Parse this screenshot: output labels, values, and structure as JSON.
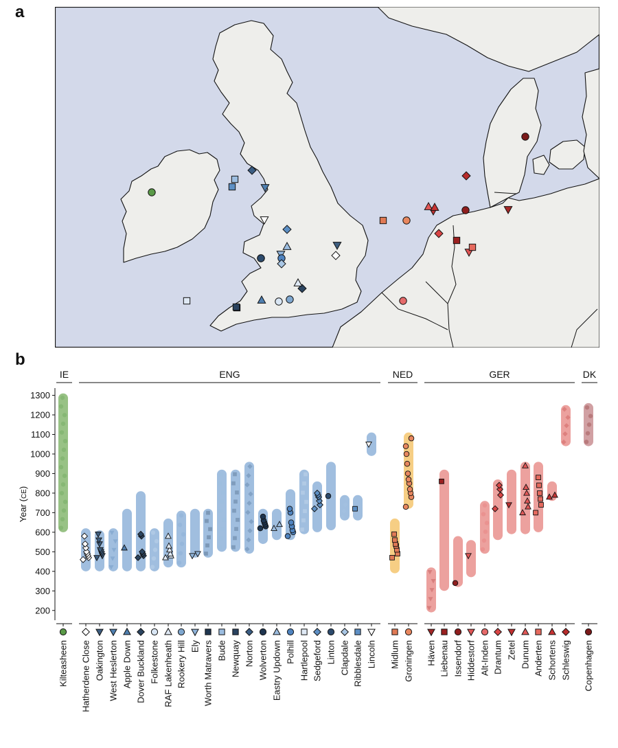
{
  "panel_a_label": "a",
  "panel_b_label": "b",
  "colors": {
    "sea": "#d3d9ea",
    "land": "#eeeeeb",
    "coast": "#111111",
    "IE": "#86b770",
    "ENG": "#8fb3d9",
    "NED": "#f5c56f",
    "GER": "#e9908d",
    "DK": "#c98f93"
  },
  "map_markers": [
    {
      "site": "Kilteasheen",
      "shape": "circle",
      "color": "#5a9a48"
    },
    {
      "site": "Hatherdene Close",
      "shape": "diamond",
      "color": "#ffffff"
    },
    {
      "site": "Oakington",
      "shape": "triangle-down",
      "color": "#3e5e80"
    },
    {
      "site": "West Heslerton",
      "shape": "triangle-down",
      "color": "#4f7fb0"
    },
    {
      "site": "Apple Down",
      "shape": "triangle-up",
      "color": "#4f7fb0"
    },
    {
      "site": "Dover Buckland",
      "shape": "diamond",
      "color": "#2c4560"
    },
    {
      "site": "Folkestone",
      "shape": "circle",
      "color": "#d9e6f4"
    },
    {
      "site": "RAF Lakenheath",
      "shape": "triangle-up",
      "color": "#dfe9f5"
    },
    {
      "site": "Rookery Hill",
      "shape": "circle",
      "color": "#7fa7cf"
    },
    {
      "site": "Ely",
      "shape": "triangle-down",
      "color": "#8fb3d9"
    },
    {
      "site": "Worth Matravers",
      "shape": "square",
      "color": "#1f3650"
    },
    {
      "site": "Bude",
      "shape": "square",
      "color": "#9cbde0"
    },
    {
      "site": "Newquay",
      "shape": "square",
      "color": "#2a4360"
    },
    {
      "site": "Norton",
      "shape": "diamond",
      "color": "#3a5d84"
    },
    {
      "site": "Wolverton",
      "shape": "circle",
      "color": "#1e3550"
    },
    {
      "site": "Eastry Updown",
      "shape": "triangle-up",
      "color": "#9cbde0"
    },
    {
      "site": "Polhill",
      "shape": "circle",
      "color": "#4f83bf"
    },
    {
      "site": "Hartlepool",
      "shape": "square",
      "color": "#dfe9f5"
    },
    {
      "site": "Sedgeford",
      "shape": "diamond",
      "color": "#5d8fc4"
    },
    {
      "site": "Linton",
      "shape": "circle",
      "color": "#2c4a6c"
    },
    {
      "site": "Clapdale",
      "shape": "diamond",
      "color": "#a9c6e4"
    },
    {
      "site": "Ribblesdale",
      "shape": "square",
      "color": "#5d8fc4"
    },
    {
      "site": "Lincoln",
      "shape": "triangle-down",
      "color": "#ffffff"
    },
    {
      "site": "Midlum",
      "shape": "square",
      "color": "#e07a55"
    },
    {
      "site": "Groningen",
      "shape": "circle",
      "color": "#e8875f"
    },
    {
      "site": "Häven",
      "shape": "triangle-down",
      "color": "#a52828"
    },
    {
      "site": "Liebenau",
      "shape": "square",
      "color": "#9a2020"
    },
    {
      "site": "Issendorf",
      "shape": "circle",
      "color": "#8f1e1e"
    },
    {
      "site": "Hiddestorf",
      "shape": "triangle-down",
      "color": "#e05555"
    },
    {
      "site": "Alt-Inden",
      "shape": "circle",
      "color": "#e56a6a"
    },
    {
      "site": "Drantum",
      "shape": "diamond",
      "color": "#d94545"
    },
    {
      "site": "Zetel",
      "shape": "triangle-down",
      "color": "#c03030"
    },
    {
      "site": "Dunum",
      "shape": "triangle-up",
      "color": "#e25858"
    },
    {
      "site": "Anderten",
      "shape": "square",
      "color": "#e66a5e"
    },
    {
      "site": "Schortens",
      "shape": "triangle-up",
      "color": "#c83434"
    },
    {
      "site": "Schleswig",
      "shape": "diamond",
      "color": "#b72c2c"
    },
    {
      "site": "Copenhagen",
      "shape": "circle",
      "color": "#7a1a1a"
    }
  ],
  "chart_data": {
    "type": "scatter",
    "title": "",
    "xlabel": "",
    "ylabel": "Year (CE)",
    "ylabel_main": "Year (",
    "ylabel_unit": "CE",
    "ylabel_close": ")",
    "ylim": [
      150,
      1330
    ],
    "yticks": [
      200,
      300,
      400,
      500,
      600,
      700,
      800,
      900,
      1000,
      1100,
      1200,
      1300
    ],
    "grid": false,
    "groups": [
      {
        "label": "IE",
        "color": "#86b770",
        "sites": [
          0
        ]
      },
      {
        "label": "ENG",
        "color": "#8fb3d9",
        "sites": [
          1,
          2,
          3,
          4,
          5,
          6,
          7,
          8,
          9,
          10,
          11,
          12,
          13,
          14,
          15,
          16,
          17,
          18,
          19,
          20,
          21,
          22
        ]
      },
      {
        "label": "NED",
        "color": "#f5c56f",
        "sites": [
          23,
          24
        ]
      },
      {
        "label": "GER",
        "color": "#e9908d",
        "sites": [
          25,
          26,
          27,
          28,
          29,
          30,
          31,
          32,
          33,
          34,
          35
        ]
      },
      {
        "label": "DK",
        "color": "#c98f93",
        "sites": [
          36
        ]
      }
    ],
    "sites": [
      {
        "name": "Kilteasheen",
        "group": "IE",
        "shape": "circle",
        "color": "#5a9a48",
        "range": [
          600,
          1310
        ],
        "points": []
      },
      {
        "name": "Hatherdene Close",
        "group": "ENG",
        "shape": "diamond",
        "color": "#ffffff",
        "range": [
          400,
          620
        ],
        "points": [
          460,
          470,
          480,
          490,
          500,
          520,
          540,
          580
        ]
      },
      {
        "name": "Oakington",
        "group": "ENG",
        "shape": "triangle-down",
        "color": "#3e5e80",
        "range": [
          400,
          610
        ],
        "points": [
          470,
          480,
          490,
          500,
          510,
          540,
          560,
          590
        ]
      },
      {
        "name": "West Heslerton",
        "group": "ENG",
        "shape": "triangle-down",
        "color": "#4f7fb0",
        "range": [
          400,
          620
        ],
        "points": []
      },
      {
        "name": "Apple Down",
        "group": "ENG",
        "shape": "triangle-up",
        "color": "#4f7fb0",
        "range": [
          400,
          720
        ],
        "points": [
          520
        ]
      },
      {
        "name": "Dover Buckland",
        "group": "ENG",
        "shape": "diamond",
        "color": "#2c4560",
        "range": [
          400,
          810
        ],
        "points": [
          470,
          480,
          490,
          500,
          580,
          590
        ]
      },
      {
        "name": "Folkestone",
        "group": "ENG",
        "shape": "circle",
        "color": "#d9e6f4",
        "range": [
          400,
          620
        ],
        "points": []
      },
      {
        "name": "RAF Lakenheath",
        "group": "ENG",
        "shape": "triangle-up",
        "color": "#dfe9f5",
        "range": [
          420,
          670
        ],
        "points": [
          470,
          480,
          490,
          510,
          530,
          580
        ]
      },
      {
        "name": "Rookery Hill",
        "group": "ENG",
        "shape": "circle",
        "color": "#7fa7cf",
        "range": [
          420,
          710
        ],
        "points": []
      },
      {
        "name": "Ely",
        "group": "ENG",
        "shape": "triangle-down",
        "color": "#8fb3d9",
        "range": [
          470,
          720
        ],
        "points": [
          480,
          490
        ]
      },
      {
        "name": "Worth Matravers",
        "group": "ENG",
        "shape": "square",
        "color": "#1f3650",
        "range": [
          470,
          720
        ],
        "points": []
      },
      {
        "name": "Bude",
        "group": "ENG",
        "shape": "square",
        "color": "#9cbde0",
        "range": [
          500,
          920
        ],
        "points": []
      },
      {
        "name": "Newquay",
        "group": "ENG",
        "shape": "square",
        "color": "#2a4360",
        "range": [
          500,
          920
        ],
        "points": []
      },
      {
        "name": "Norton",
        "group": "ENG",
        "shape": "diamond",
        "color": "#3a5d84",
        "range": [
          490,
          960
        ],
        "points": []
      },
      {
        "name": "Wolverton",
        "group": "ENG",
        "shape": "circle",
        "color": "#1e3550",
        "range": [
          540,
          720
        ],
        "points": [
          620,
          630,
          640,
          650,
          660,
          680
        ]
      },
      {
        "name": "Eastry Updown",
        "group": "ENG",
        "shape": "triangle-up",
        "color": "#9cbde0",
        "range": [
          560,
          720
        ],
        "points": [
          620,
          640
        ]
      },
      {
        "name": "Polhill",
        "group": "ENG",
        "shape": "circle",
        "color": "#4f83bf",
        "range": [
          560,
          820
        ],
        "points": [
          580,
          600,
          610,
          630,
          650,
          700,
          720
        ]
      },
      {
        "name": "Hartlepool",
        "group": "ENG",
        "shape": "square",
        "color": "#dfe9f5",
        "range": [
          590,
          920
        ],
        "points": []
      },
      {
        "name": "Sedgeford",
        "group": "ENG",
        "shape": "diamond",
        "color": "#5d8fc4",
        "range": [
          600,
          860
        ],
        "points": [
          720,
          740,
          760,
          780,
          790,
          800
        ]
      },
      {
        "name": "Linton",
        "group": "ENG",
        "shape": "circle",
        "color": "#2c4a6c",
        "range": [
          610,
          960
        ],
        "points": [
          785
        ]
      },
      {
        "name": "Clapdale",
        "group": "ENG",
        "shape": "diamond",
        "color": "#a9c6e4",
        "range": [
          660,
          790
        ],
        "points": []
      },
      {
        "name": "Ribblesdale",
        "group": "ENG",
        "shape": "square",
        "color": "#5d8fc4",
        "range": [
          660,
          790
        ],
        "points": [
          720
        ]
      },
      {
        "name": "Lincoln",
        "group": "ENG",
        "shape": "triangle-down",
        "color": "#ffffff",
        "range": [
          990,
          1110
        ],
        "points": [
          1050
        ]
      },
      {
        "name": "Midlum",
        "group": "NED",
        "shape": "square",
        "color": "#e07a55",
        "range": [
          390,
          670
        ],
        "points": [
          470,
          490,
          510,
          530,
          540,
          560,
          590
        ]
      },
      {
        "name": "Groningen",
        "group": "NED",
        "shape": "circle",
        "color": "#e8875f",
        "range": [
          720,
          1110
        ],
        "points": [
          730,
          780,
          800,
          820,
          850,
          870,
          900,
          950,
          1000,
          1040,
          1080
        ]
      },
      {
        "name": "Häven",
        "group": "GER",
        "shape": "triangle-down",
        "color": "#a52828",
        "range": [
          190,
          420
        ],
        "points": []
      },
      {
        "name": "Liebenau",
        "group": "GER",
        "shape": "square",
        "color": "#9a2020",
        "range": [
          300,
          920
        ],
        "points": [
          860
        ]
      },
      {
        "name": "Issendorf",
        "group": "GER",
        "shape": "circle",
        "color": "#8f1e1e",
        "range": [
          320,
          580
        ],
        "points": [
          340
        ]
      },
      {
        "name": "Hiddestorf",
        "group": "GER",
        "shape": "triangle-down",
        "color": "#e05555",
        "range": [
          370,
          560
        ],
        "points": [
          480
        ]
      },
      {
        "name": "Alt-Inden",
        "group": "GER",
        "shape": "circle",
        "color": "#e56a6a",
        "range": [
          490,
          760
        ],
        "points": []
      },
      {
        "name": "Drantum",
        "group": "GER",
        "shape": "diamond",
        "color": "#d94545",
        "range": [
          560,
          870
        ],
        "points": [
          720,
          790,
          820,
          840
        ]
      },
      {
        "name": "Zetel",
        "group": "GER",
        "shape": "triangle-down",
        "color": "#c03030",
        "range": [
          590,
          920
        ],
        "points": [
          740
        ]
      },
      {
        "name": "Dunum",
        "group": "GER",
        "shape": "triangle-up",
        "color": "#e25858",
        "range": [
          590,
          960
        ],
        "points": [
          700,
          730,
          760,
          800,
          830,
          940
        ]
      },
      {
        "name": "Anderten",
        "group": "GER",
        "shape": "square",
        "color": "#e66a5e",
        "range": [
          600,
          960
        ],
        "points": [
          700,
          740,
          770,
          800,
          840,
          880
        ]
      },
      {
        "name": "Schortens",
        "group": "GER",
        "shape": "triangle-up",
        "color": "#c83434",
        "range": [
          760,
          860
        ],
        "points": [
          780,
          790
        ]
      },
      {
        "name": "Schleswig",
        "group": "GER",
        "shape": "diamond",
        "color": "#b72c2c",
        "range": [
          1040,
          1250
        ],
        "points": []
      },
      {
        "name": "Copenhagen",
        "group": "DK",
        "shape": "circle",
        "color": "#7a1a1a",
        "range": [
          1040,
          1260
        ],
        "points": []
      }
    ]
  }
}
